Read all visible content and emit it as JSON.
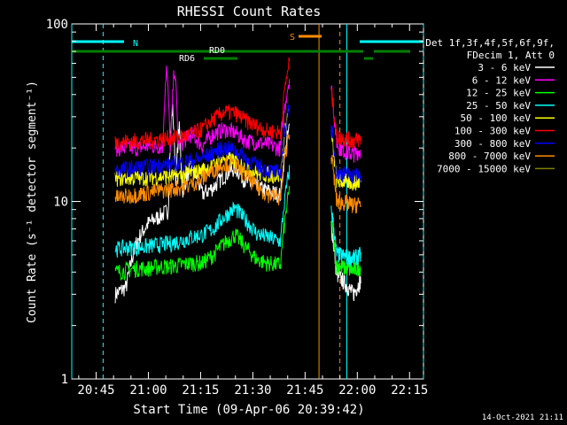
{
  "chart_data": {
    "type": "line",
    "title": "RHESSI Count Rates",
    "xlabel": "Start Time (09-Apr-06 20:39:42)",
    "ylabel": "Count Rate (s⁻¹ detector segment⁻¹)",
    "y_scale": "log",
    "ylim": [
      1,
      100
    ],
    "xlim_minutes_after_2045": [
      -7,
      94
    ],
    "x_ticks": [
      "20:45",
      "21:00",
      "21:15",
      "21:30",
      "21:45",
      "22:00",
      "22:15"
    ],
    "x_tick_minutes": [
      0,
      15,
      30,
      45,
      60,
      75,
      90
    ],
    "y_ticks": [
      "1",
      "10",
      "100"
    ],
    "y_tick_values": [
      1,
      10,
      100
    ],
    "legend_header": [
      "Det 1f,3f,4f,5f,6f,9f,",
      "FDecim 1, Att 0"
    ],
    "legend_position": "right",
    "timestamp": "14-Oct-2021 21:11",
    "series": [
      {
        "name": "3 - 6 keV",
        "color": "#ffffff",
        "base": [
          3.0,
          3.3,
          6.0,
          7.5,
          8.2,
          9.0,
          10.5,
          16.0,
          11.0,
          12.0,
          14.0,
          15.5,
          13.0,
          12.0,
          11.5,
          11.0,
          10.5
        ],
        "peaks": [
          [
            21.9,
            34.0
          ],
          [
            23.8,
            27.0
          ]
        ],
        "post": [
          4.2,
          3.8,
          3.4,
          3.0,
          3.6
        ]
      },
      {
        "name": "6 - 12 keV",
        "color": "#ff00ff",
        "base": [
          20.0,
          20.0,
          20.0,
          20.5,
          20.5,
          20.5,
          21.0,
          24.0,
          20.5,
          24.0,
          25.5,
          24.5,
          22.0,
          21.5,
          21.0,
          20.0,
          20.0
        ],
        "peaks": [
          [
            20.2,
            57.0
          ],
          [
            22.5,
            58.0
          ]
        ],
        "post": [
          25.0,
          20.5,
          19.0,
          18.5,
          19.5
        ]
      },
      {
        "name": "12 - 25 keV",
        "color": "#00ff00",
        "base": [
          4.0,
          4.1,
          4.2,
          4.2,
          4.3,
          4.3,
          4.4,
          4.5,
          4.5,
          5.0,
          5.8,
          6.5,
          5.5,
          4.7,
          4.5,
          4.4,
          4.6
        ],
        "peaks": [],
        "post": [
          4.5,
          4.3,
          4.2,
          4.1,
          4.3
        ]
      },
      {
        "name": "25 - 50 keV",
        "color": "#00ffff",
        "base": [
          5.4,
          5.5,
          5.5,
          5.6,
          5.7,
          5.8,
          6.0,
          6.3,
          6.5,
          7.0,
          8.2,
          9.2,
          7.8,
          6.6,
          6.3,
          6.0,
          6.0
        ],
        "peaks": [],
        "post": [
          5.2,
          5.0,
          4.9,
          4.8,
          5.0
        ]
      },
      {
        "name": "50 - 100 keV",
        "color": "#ffff00",
        "base": [
          13.5,
          13.6,
          13.6,
          13.7,
          13.8,
          13.9,
          14.0,
          14.5,
          15.0,
          16.0,
          17.5,
          17.0,
          15.5,
          14.5,
          14.2,
          14.0,
          14.0
        ],
        "peaks": [],
        "post": [
          13.5,
          13.2,
          13.0,
          12.8,
          13.0
        ]
      },
      {
        "name": "100 - 300 keV",
        "color": "#ff0000",
        "base": [
          21.5,
          21.8,
          22.0,
          22.2,
          22.5,
          22.8,
          23.0,
          24.0,
          25.5,
          29.0,
          32.0,
          31.5,
          28.5,
          26.5,
          25.0,
          24.5,
          25.0
        ],
        "peaks": [],
        "post": [
          24.0,
          23.0,
          22.5,
          22.0,
          22.5
        ]
      },
      {
        "name": "300 - 800 keV",
        "color": "#0000ff",
        "base": [
          15.0,
          15.3,
          15.5,
          15.7,
          16.0,
          16.2,
          16.5,
          17.0,
          17.5,
          19.0,
          20.0,
          19.5,
          17.5,
          16.0,
          15.0,
          14.5,
          14.0
        ],
        "peaks": [],
        "post": [
          15.0,
          14.5,
          14.2,
          14.0,
          14.2
        ]
      },
      {
        "name": "800 - 7000 keV",
        "color": "#ff8c00",
        "base": [
          10.5,
          10.7,
          11.0,
          11.2,
          11.5,
          11.7,
          12.0,
          12.5,
          13.5,
          15.0,
          16.5,
          16.0,
          14.0,
          12.0,
          11.0,
          10.5,
          10.0
        ],
        "peaks": [],
        "post": [
          10.5,
          10.0,
          9.8,
          9.5,
          9.8
        ]
      },
      {
        "name": "7000 - 15000 keV",
        "color": "#808000",
        "base": [],
        "peaks": [],
        "post": []
      }
    ],
    "orbit_markers": {
      "night": {
        "label": "N",
        "color": "#00ffff",
        "start_min": -7,
        "end_min": 2,
        "start2_min": 72,
        "end2_min": 94
      },
      "saa": {
        "label": "S",
        "color": "#ff8c00",
        "start_min": 64,
        "end_min": 70
      },
      "rd0": {
        "label": "RD0",
        "color": "#008000"
      },
      "rd6": {
        "label": "RD6",
        "color": "#008000"
      }
    }
  }
}
